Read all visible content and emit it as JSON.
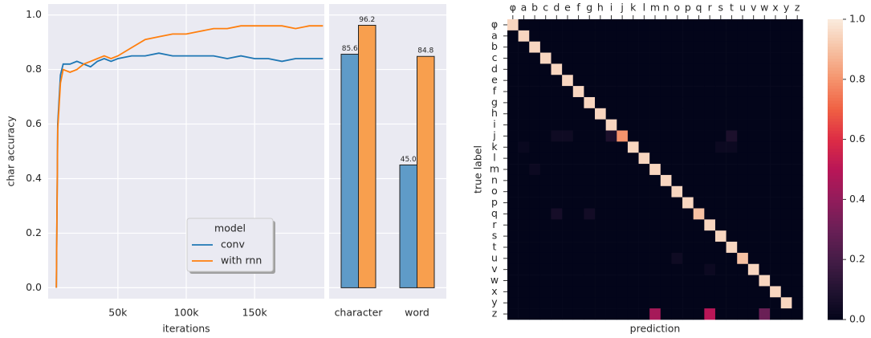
{
  "chart_data": [
    {
      "type": "line",
      "xlabel": "iterations",
      "ylabel": "char accuracy",
      "legend_title": "model",
      "legend": "lower center",
      "grid": true,
      "xlim": [
        -1000,
        201000
      ],
      "ylim": [
        -0.04,
        1.04
      ],
      "xticks": [
        {
          "value": 50000,
          "label": "50k"
        },
        {
          "value": 100000,
          "label": "100k"
        },
        {
          "value": 150000,
          "label": "150k"
        }
      ],
      "yticks": [
        {
          "value": 0,
          "label": "0.0"
        },
        {
          "value": 0.2,
          "label": "0.2"
        },
        {
          "value": 0.4,
          "label": "0.4"
        },
        {
          "value": 0.6,
          "label": "0.6"
        },
        {
          "value": 0.8,
          "label": "0.8"
        },
        {
          "value": 1,
          "label": "1.0"
        }
      ],
      "x": [
        5000,
        6000,
        8000,
        10000,
        15000,
        20000,
        25000,
        30000,
        35000,
        40000,
        45000,
        50000,
        60000,
        70000,
        80000,
        90000,
        100000,
        110000,
        120000,
        130000,
        140000,
        150000,
        160000,
        170000,
        180000,
        190000,
        200000
      ],
      "series": [
        {
          "name": "conv",
          "color": "#1f77b4",
          "values": [
            0.0,
            0.6,
            0.78,
            0.82,
            0.82,
            0.83,
            0.82,
            0.81,
            0.83,
            0.84,
            0.83,
            0.84,
            0.85,
            0.85,
            0.86,
            0.85,
            0.85,
            0.85,
            0.85,
            0.84,
            0.85,
            0.84,
            0.84,
            0.83,
            0.84,
            0.84,
            0.84
          ]
        },
        {
          "name": "with rnn",
          "color": "#ff7f0e",
          "values": [
            0.0,
            0.58,
            0.75,
            0.8,
            0.79,
            0.8,
            0.82,
            0.83,
            0.84,
            0.85,
            0.84,
            0.85,
            0.88,
            0.91,
            0.92,
            0.93,
            0.93,
            0.94,
            0.95,
            0.95,
            0.96,
            0.96,
            0.96,
            0.96,
            0.95,
            0.96,
            0.96
          ]
        }
      ]
    },
    {
      "type": "bar",
      "ylim": [
        -0.04,
        1.04
      ],
      "categories": [
        "character",
        "word"
      ],
      "series": [
        {
          "color": "#5f9bc8",
          "values": [
            0.856,
            0.45
          ],
          "value_labels": [
            "85.6",
            "45.0"
          ]
        },
        {
          "color": "#f89f4e",
          "values": [
            0.962,
            0.848
          ],
          "value_labels": [
            "96.2",
            "84.8"
          ]
        }
      ]
    },
    {
      "type": "heatmap",
      "xlabel": "prediction",
      "ylabel": "true label",
      "cmap": "rocket",
      "categories": [
        "φ",
        "a",
        "b",
        "c",
        "d",
        "e",
        "f",
        "g",
        "h",
        "i",
        "j",
        "k",
        "l",
        "m",
        "n",
        "o",
        "p",
        "q",
        "r",
        "s",
        "t",
        "u",
        "v",
        "w",
        "x",
        "y",
        "z"
      ],
      "clim": [
        0,
        1
      ],
      "cticks": [
        {
          "value": 0,
          "label": "0.0"
        },
        {
          "value": 0.2,
          "label": "0.2"
        },
        {
          "value": 0.4,
          "label": "0.4"
        },
        {
          "value": 0.6,
          "label": "0.6"
        },
        {
          "value": 0.8,
          "label": "0.8"
        },
        {
          "value": 1,
          "label": "1.0"
        }
      ],
      "values": [
        [
          0.95,
          0,
          0,
          0,
          0,
          0,
          0,
          0,
          0,
          0,
          0,
          0,
          0,
          0,
          0,
          0,
          0,
          0,
          0,
          0,
          0,
          0,
          0,
          0,
          0,
          0,
          0
        ],
        [
          0,
          0.95,
          0,
          0,
          0,
          0,
          0,
          0,
          0,
          0,
          0,
          0,
          0,
          0,
          0,
          0,
          0,
          0,
          0,
          0,
          0,
          0,
          0,
          0,
          0,
          0,
          0
        ],
        [
          0,
          0,
          0.95,
          0,
          0,
          0,
          0,
          0,
          0,
          0,
          0,
          0,
          0,
          0,
          0,
          0,
          0,
          0,
          0,
          0,
          0,
          0,
          0,
          0,
          0,
          0,
          0
        ],
        [
          0,
          0,
          0,
          0.95,
          0,
          0,
          0,
          0,
          0,
          0,
          0,
          0,
          0,
          0,
          0,
          0,
          0,
          0,
          0,
          0,
          0,
          0,
          0,
          0,
          0,
          0,
          0
        ],
        [
          0,
          0,
          0,
          0,
          0.95,
          0,
          0,
          0,
          0,
          0,
          0,
          0,
          0,
          0,
          0,
          0,
          0,
          0,
          0,
          0,
          0,
          0,
          0,
          0,
          0,
          0,
          0
        ],
        [
          0,
          0,
          0,
          0,
          0,
          0.95,
          0,
          0,
          0,
          0,
          0,
          0,
          0,
          0,
          0,
          0,
          0,
          0,
          0,
          0,
          0,
          0,
          0,
          0,
          0,
          0,
          0
        ],
        [
          0,
          0,
          0,
          0,
          0,
          0,
          0.95,
          0,
          0,
          0,
          0,
          0,
          0,
          0,
          0,
          0,
          0,
          0,
          0,
          0,
          0,
          0,
          0,
          0,
          0,
          0,
          0
        ],
        [
          0,
          0,
          0,
          0,
          0,
          0,
          0,
          0.95,
          0,
          0,
          0,
          0,
          0,
          0,
          0,
          0,
          0,
          0,
          0,
          0,
          0,
          0,
          0,
          0,
          0,
          0,
          0
        ],
        [
          0,
          0,
          0,
          0,
          0,
          0,
          0,
          0,
          0.95,
          0,
          0,
          0,
          0,
          0,
          0,
          0,
          0,
          0,
          0,
          0,
          0,
          0,
          0,
          0,
          0,
          0,
          0
        ],
        [
          0,
          0,
          0,
          0,
          0,
          0,
          0,
          0,
          0,
          0.95,
          0,
          0,
          0,
          0,
          0,
          0,
          0,
          0,
          0,
          0,
          0,
          0,
          0,
          0,
          0,
          0,
          0
        ],
        [
          0,
          0,
          0,
          0,
          0.04,
          0.04,
          0,
          0,
          0,
          0.08,
          0.8,
          0,
          0,
          0,
          0,
          0,
          0,
          0,
          0,
          0,
          0.08,
          0,
          0,
          0,
          0,
          0,
          0
        ],
        [
          0,
          0.02,
          0,
          0,
          0,
          0,
          0,
          0,
          0,
          0,
          0,
          0.95,
          0,
          0,
          0,
          0,
          0,
          0,
          0,
          0.03,
          0.03,
          0,
          0,
          0,
          0,
          0,
          0
        ],
        [
          0,
          0,
          0,
          0,
          0,
          0,
          0,
          0,
          0,
          0,
          0,
          0,
          0.95,
          0,
          0,
          0,
          0,
          0,
          0,
          0,
          0,
          0,
          0,
          0,
          0,
          0,
          0
        ],
        [
          0,
          0,
          0.03,
          0,
          0,
          0,
          0,
          0,
          0,
          0,
          0,
          0,
          0,
          0.95,
          0,
          0,
          0,
          0,
          0,
          0,
          0,
          0,
          0,
          0,
          0,
          0,
          0
        ],
        [
          0,
          0,
          0,
          0,
          0,
          0,
          0,
          0,
          0,
          0,
          0,
          0,
          0,
          0,
          0.95,
          0,
          0,
          0,
          0,
          0,
          0,
          0,
          0,
          0,
          0,
          0,
          0
        ],
        [
          0,
          0,
          0,
          0,
          0,
          0,
          0,
          0,
          0,
          0,
          0,
          0,
          0,
          0,
          0,
          0.95,
          0,
          0,
          0,
          0,
          0,
          0,
          0,
          0,
          0,
          0,
          0
        ],
        [
          0,
          0,
          0,
          0,
          0,
          0,
          0,
          0,
          0,
          0,
          0,
          0,
          0,
          0,
          0,
          0,
          0.95,
          0,
          0,
          0,
          0,
          0,
          0,
          0,
          0,
          0,
          0
        ],
        [
          0,
          0,
          0,
          0,
          0.06,
          0,
          0,
          0.05,
          0,
          0,
          0,
          0,
          0,
          0,
          0,
          0,
          0,
          0.9,
          0,
          0,
          0,
          0,
          0,
          0,
          0,
          0,
          0
        ],
        [
          0,
          0,
          0,
          0,
          0,
          0,
          0,
          0,
          0,
          0,
          0,
          0,
          0,
          0,
          0,
          0,
          0,
          0,
          0.95,
          0,
          0,
          0,
          0,
          0,
          0,
          0,
          0
        ],
        [
          0,
          0,
          0,
          0,
          0,
          0,
          0,
          0,
          0,
          0,
          0,
          0,
          0,
          0,
          0,
          0,
          0,
          0,
          0,
          0.95,
          0,
          0,
          0,
          0,
          0,
          0,
          0
        ],
        [
          0,
          0,
          0,
          0,
          0,
          0,
          0,
          0,
          0,
          0,
          0,
          0,
          0,
          0,
          0,
          0,
          0,
          0,
          0,
          0,
          0.95,
          0,
          0,
          0,
          0,
          0,
          0
        ],
        [
          0,
          0,
          0,
          0,
          0,
          0,
          0,
          0,
          0,
          0,
          0,
          0,
          0,
          0,
          0,
          0.04,
          0,
          0,
          0,
          0,
          0,
          0.9,
          0,
          0,
          0,
          0,
          0
        ],
        [
          0,
          0,
          0,
          0,
          0,
          0,
          0,
          0,
          0,
          0,
          0,
          0,
          0,
          0,
          0,
          0,
          0,
          0,
          0.03,
          0,
          0,
          0,
          0.95,
          0,
          0,
          0,
          0
        ],
        [
          0,
          0,
          0,
          0,
          0,
          0,
          0,
          0,
          0,
          0,
          0,
          0,
          0,
          0,
          0,
          0,
          0,
          0,
          0,
          0,
          0,
          0,
          0,
          0.95,
          0,
          0,
          0
        ],
        [
          0,
          0,
          0,
          0,
          0,
          0,
          0,
          0,
          0,
          0,
          0,
          0,
          0,
          0,
          0,
          0,
          0,
          0,
          0,
          0,
          0,
          0,
          0,
          0,
          0.95,
          0,
          0
        ],
        [
          0,
          0,
          0,
          0,
          0,
          0,
          0,
          0,
          0,
          0,
          0,
          0,
          0,
          0,
          0,
          0,
          0,
          0,
          0,
          0,
          0,
          0,
          0,
          0,
          0,
          0.95,
          0
        ],
        [
          0,
          0,
          0,
          0,
          0,
          0,
          0,
          0,
          0,
          0,
          0,
          0,
          0,
          0.45,
          0,
          0,
          0,
          0,
          0.5,
          0,
          0,
          0,
          0,
          0.3,
          0,
          0,
          0
        ]
      ]
    }
  ]
}
